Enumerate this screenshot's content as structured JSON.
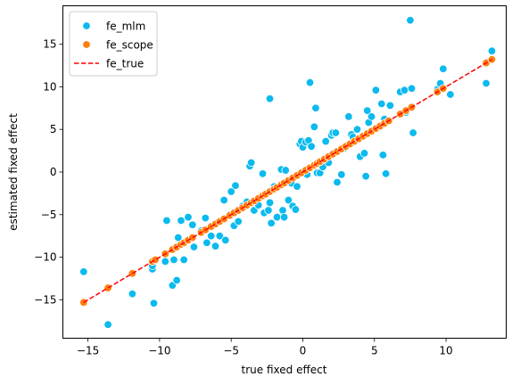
{
  "chart_data": {
    "type": "scatter",
    "xlabel": "true fixed effect",
    "ylabel": "estimated fixed effect",
    "xlim": [
      -16.75,
      14.2
    ],
    "ylim": [
      -19.5,
      19.5
    ],
    "xticks": [
      -15,
      -10,
      -5,
      0,
      5,
      10
    ],
    "yticks": [
      -15,
      -10,
      -5,
      0,
      5,
      10,
      15
    ],
    "grid": false,
    "legend_position": "top-left",
    "series": [
      {
        "name": "fe_mlm",
        "kind": "scatter",
        "color": "#0bbaee",
        "points": [
          [
            -15.3,
            -11.7
          ],
          [
            -13.6,
            -17.9
          ],
          [
            -11.9,
            -14.3
          ],
          [
            -10.4,
            -15.4
          ],
          [
            -10.5,
            -11.4
          ],
          [
            -10.5,
            -11.0
          ],
          [
            -9.6,
            -10.5
          ],
          [
            -9.5,
            -5.7
          ],
          [
            -9.1,
            -13.3
          ],
          [
            -9.0,
            -10.3
          ],
          [
            -8.8,
            -12.7
          ],
          [
            -8.7,
            -7.7
          ],
          [
            -8.5,
            -5.7
          ],
          [
            -8.3,
            -10.3
          ],
          [
            -8.0,
            -5.3
          ],
          [
            -7.7,
            -6.2
          ],
          [
            -7.6,
            -8.8
          ],
          [
            -7.1,
            -6.9
          ],
          [
            -6.8,
            -5.4
          ],
          [
            -6.7,
            -8.3
          ],
          [
            -6.4,
            -7.5
          ],
          [
            -6.1,
            -8.7
          ],
          [
            -5.8,
            -7.5
          ],
          [
            -5.5,
            -3.3
          ],
          [
            -5.4,
            -8.0
          ],
          [
            -5.1,
            -5.0
          ],
          [
            -5.0,
            -2.3
          ],
          [
            -4.8,
            -6.3
          ],
          [
            -4.7,
            -1.6
          ],
          [
            -4.5,
            -5.8
          ],
          [
            -4.2,
            -4.0
          ],
          [
            -3.9,
            -3.5
          ],
          [
            -3.7,
            0.7
          ],
          [
            -3.6,
            1.1
          ],
          [
            -3.4,
            -4.5
          ],
          [
            -3.1,
            -3.9
          ],
          [
            -2.8,
            -0.2
          ],
          [
            -2.7,
            -4.8
          ],
          [
            -2.4,
            -4.5
          ],
          [
            -2.3,
            -3.6
          ],
          [
            -2.3,
            8.6
          ],
          [
            -2.2,
            -6.0
          ],
          [
            -2.0,
            -1.7
          ],
          [
            -1.8,
            -5.3
          ],
          [
            -1.6,
            -1.6
          ],
          [
            -1.5,
            0.3
          ],
          [
            -1.4,
            -4.5
          ],
          [
            -1.3,
            -5.3
          ],
          [
            -1.2,
            0.2
          ],
          [
            -1.0,
            -3.3
          ],
          [
            -0.8,
            -1.3
          ],
          [
            -0.7,
            -4.0
          ],
          [
            -0.5,
            -4.4
          ],
          [
            -0.4,
            -1.7
          ],
          [
            -0.2,
            3.3
          ],
          [
            -0.1,
            3.6
          ],
          [
            0.0,
            2.9
          ],
          [
            0.2,
            3.5
          ],
          [
            0.3,
            -0.3
          ],
          [
            0.4,
            3.7
          ],
          [
            0.5,
            10.5
          ],
          [
            0.6,
            3.0
          ],
          [
            0.8,
            5.3
          ],
          [
            0.9,
            7.5
          ],
          [
            1.0,
            -0.1
          ],
          [
            1.2,
            -0.1
          ],
          [
            1.4,
            0.6
          ],
          [
            1.6,
            3.6
          ],
          [
            1.8,
            1.1
          ],
          [
            2.0,
            4.3
          ],
          [
            2.1,
            4.6
          ],
          [
            2.3,
            4.6
          ],
          [
            2.4,
            -1.2
          ],
          [
            2.7,
            -0.3
          ],
          [
            2.9,
            2.8
          ],
          [
            3.2,
            6.5
          ],
          [
            3.4,
            4.4
          ],
          [
            3.5,
            4.1
          ],
          [
            3.8,
            5.0
          ],
          [
            4.0,
            1.8
          ],
          [
            4.3,
            2.2
          ],
          [
            4.4,
            -0.5
          ],
          [
            4.5,
            7.2
          ],
          [
            4.6,
            5.8
          ],
          [
            4.8,
            6.5
          ],
          [
            5.1,
            9.6
          ],
          [
            5.4,
            5.3
          ],
          [
            5.5,
            8.0
          ],
          [
            5.6,
            2.0
          ],
          [
            5.7,
            6.2
          ],
          [
            5.8,
            -0.2
          ],
          [
            6.1,
            7.8
          ],
          [
            6.8,
            9.4
          ],
          [
            7.1,
            9.6
          ],
          [
            7.2,
            7.0
          ],
          [
            7.5,
            17.8
          ],
          [
            7.6,
            9.8
          ],
          [
            7.7,
            4.6
          ],
          [
            9.4,
            9.7
          ],
          [
            9.6,
            10.4
          ],
          [
            9.8,
            12.1
          ],
          [
            10.3,
            9.1
          ],
          [
            12.8,
            10.4
          ],
          [
            13.2,
            14.2
          ]
        ]
      },
      {
        "name": "fe_scope",
        "kind": "scatter",
        "color": "#ff7f0e",
        "points": [
          [
            -15.3,
            -15.3
          ],
          [
            -13.6,
            -13.6
          ],
          [
            -11.9,
            -11.9
          ],
          [
            -10.5,
            -10.5
          ],
          [
            -10.3,
            -10.3
          ],
          [
            -9.6,
            -9.6
          ],
          [
            -9.1,
            -9.1
          ],
          [
            -8.8,
            -8.8
          ],
          [
            -8.5,
            -8.5
          ],
          [
            -8.3,
            -8.3
          ],
          [
            -8.0,
            -8.0
          ],
          [
            -7.7,
            -7.7
          ],
          [
            -7.1,
            -7.1
          ],
          [
            -6.8,
            -6.8
          ],
          [
            -6.4,
            -6.4
          ],
          [
            -6.1,
            -6.1
          ],
          [
            -5.8,
            -5.8
          ],
          [
            -5.5,
            -5.5
          ],
          [
            -5.1,
            -5.1
          ],
          [
            -4.8,
            -4.8
          ],
          [
            -4.5,
            -4.5
          ],
          [
            -4.2,
            -4.2
          ],
          [
            -3.9,
            -3.9
          ],
          [
            -3.6,
            -3.6
          ],
          [
            -3.4,
            -3.4
          ],
          [
            -3.1,
            -3.1
          ],
          [
            -2.8,
            -2.8
          ],
          [
            -2.6,
            -2.6
          ],
          [
            -2.3,
            -2.3
          ],
          [
            -2.0,
            -2.0
          ],
          [
            -1.8,
            -1.8
          ],
          [
            -1.5,
            -1.5
          ],
          [
            -1.3,
            -1.3
          ],
          [
            -1.0,
            -1.0
          ],
          [
            -0.7,
            -0.7
          ],
          [
            -0.4,
            -0.4
          ],
          [
            -0.1,
            -0.1
          ],
          [
            0.2,
            0.2
          ],
          [
            0.5,
            0.5
          ],
          [
            0.8,
            0.8
          ],
          [
            1.0,
            1.0
          ],
          [
            1.2,
            1.2
          ],
          [
            1.5,
            1.5
          ],
          [
            1.8,
            1.8
          ],
          [
            2.1,
            2.1
          ],
          [
            2.4,
            2.4
          ],
          [
            2.7,
            2.7
          ],
          [
            3.0,
            3.0
          ],
          [
            3.3,
            3.3
          ],
          [
            3.6,
            3.6
          ],
          [
            3.9,
            3.9
          ],
          [
            4.2,
            4.2
          ],
          [
            4.5,
            4.5
          ],
          [
            4.8,
            4.8
          ],
          [
            5.1,
            5.1
          ],
          [
            5.4,
            5.4
          ],
          [
            5.7,
            5.7
          ],
          [
            6.0,
            6.0
          ],
          [
            6.8,
            6.8
          ],
          [
            7.2,
            7.2
          ],
          [
            7.6,
            7.6
          ],
          [
            9.4,
            9.4
          ],
          [
            9.8,
            9.8
          ],
          [
            12.8,
            12.8
          ],
          [
            13.2,
            13.2
          ]
        ]
      },
      {
        "name": "fe_true",
        "kind": "line",
        "color": "#ff0000",
        "dash": "dashed",
        "points": [
          [
            -15.3,
            -15.3
          ],
          [
            13.2,
            13.2
          ]
        ]
      }
    ]
  }
}
